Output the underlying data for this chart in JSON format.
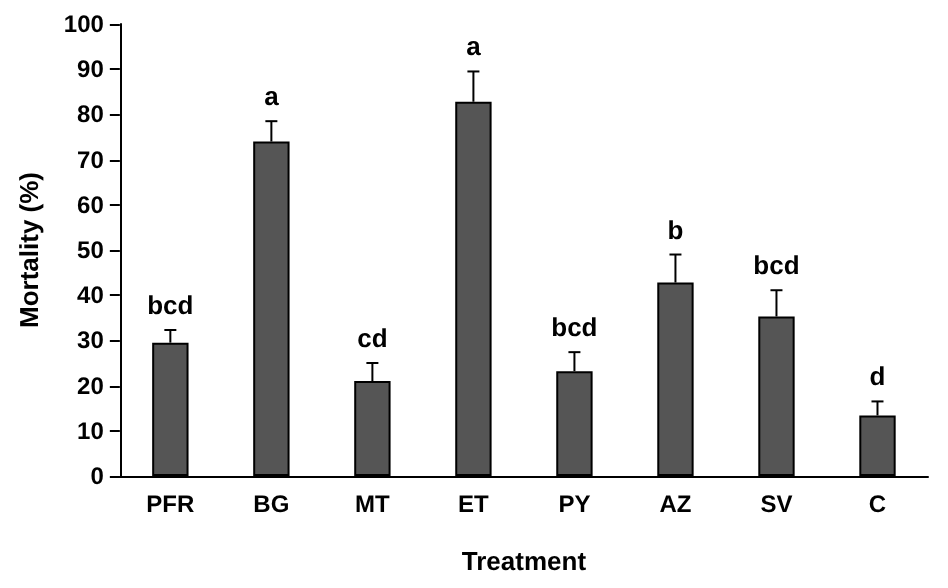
{
  "chart_data": {
    "type": "bar",
    "xlabel": "Treatment",
    "ylabel": "Mortality (%)",
    "categories": [
      "PFR",
      "BG",
      "MT",
      "ET",
      "PY",
      "AZ",
      "SV",
      "C"
    ],
    "values": [
      29.5,
      74,
      21,
      82.8,
      23.2,
      42.8,
      35.3,
      13.4
    ],
    "errors": [
      2.8,
      4.5,
      4,
      6.7,
      4.2,
      6.2,
      5.8,
      3.1
    ],
    "color": "#555555",
    "ylim": [
      0,
      100
    ],
    "yticks": [
      0,
      10,
      20,
      30,
      40,
      50,
      60,
      70,
      80,
      90,
      100
    ],
    "grid": false,
    "annotations": [
      {
        "text": "bcd",
        "x": "PFR",
        "y": 32.3
      },
      {
        "text": "a",
        "x": "BG",
        "y": 78.5
      },
      {
        "text": "cd",
        "x": "MT",
        "y": 25
      },
      {
        "text": "a",
        "x": "ET",
        "y": 89.5
      },
      {
        "text": "bcd",
        "x": "PY",
        "y": 27.4
      },
      {
        "text": "b",
        "x": "AZ",
        "y": 49
      },
      {
        "text": "bcd",
        "x": "SV",
        "y": 41.1
      },
      {
        "text": "d",
        "x": "C",
        "y": 16.5
      }
    ]
  }
}
